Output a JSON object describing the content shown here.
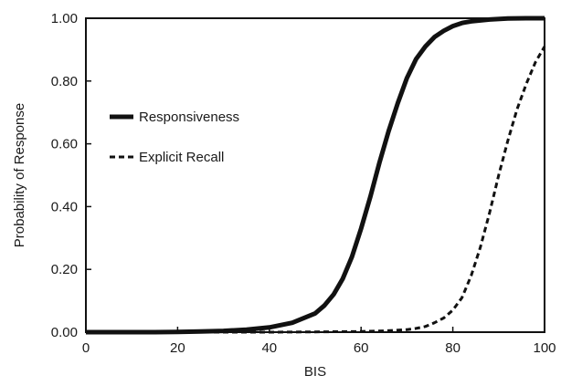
{
  "chart_data": {
    "type": "line",
    "title": "",
    "xlabel": "BIS",
    "ylabel": "Probability of Response",
    "xlim": [
      0,
      100
    ],
    "ylim": [
      0,
      1
    ],
    "x_ticks": [
      0,
      20,
      40,
      60,
      80,
      100
    ],
    "x_tick_labels": [
      "0",
      "20",
      "40",
      "60",
      "80",
      "100"
    ],
    "y_ticks": [
      0,
      0.2,
      0.4,
      0.6,
      0.8,
      1.0
    ],
    "y_tick_labels": [
      "0.00",
      "0.20",
      "0.40",
      "0.60",
      "0.80",
      "1.00"
    ],
    "grid": false,
    "legend_position": "left",
    "series": [
      {
        "name": "Responsiveness",
        "style": "solid",
        "color": "#111111",
        "points": [
          [
            0,
            0.0
          ],
          [
            5,
            0.0
          ],
          [
            10,
            0.0
          ],
          [
            15,
            0.0
          ],
          [
            20,
            0.001
          ],
          [
            25,
            0.002
          ],
          [
            30,
            0.004
          ],
          [
            35,
            0.008
          ],
          [
            40,
            0.015
          ],
          [
            45,
            0.03
          ],
          [
            50,
            0.06
          ],
          [
            52,
            0.085
          ],
          [
            54,
            0.12
          ],
          [
            56,
            0.17
          ],
          [
            58,
            0.24
          ],
          [
            60,
            0.33
          ],
          [
            62,
            0.43
          ],
          [
            64,
            0.54
          ],
          [
            66,
            0.64
          ],
          [
            68,
            0.73
          ],
          [
            70,
            0.81
          ],
          [
            72,
            0.87
          ],
          [
            74,
            0.91
          ],
          [
            76,
            0.94
          ],
          [
            78,
            0.96
          ],
          [
            80,
            0.975
          ],
          [
            82,
            0.985
          ],
          [
            84,
            0.99
          ],
          [
            88,
            0.996
          ],
          [
            92,
            0.999
          ],
          [
            96,
            1.0
          ],
          [
            100,
            1.0
          ]
        ]
      },
      {
        "name": "Explicit Recall",
        "style": "dashed",
        "color": "#111111",
        "points": [
          [
            0,
            0.0
          ],
          [
            10,
            0.0
          ],
          [
            20,
            0.0
          ],
          [
            30,
            0.0
          ],
          [
            40,
            0.0
          ],
          [
            50,
            0.001
          ],
          [
            60,
            0.002
          ],
          [
            65,
            0.004
          ],
          [
            70,
            0.008
          ],
          [
            72,
            0.012
          ],
          [
            74,
            0.018
          ],
          [
            76,
            0.03
          ],
          [
            78,
            0.045
          ],
          [
            80,
            0.07
          ],
          [
            82,
            0.11
          ],
          [
            84,
            0.18
          ],
          [
            86,
            0.27
          ],
          [
            88,
            0.38
          ],
          [
            90,
            0.5
          ],
          [
            92,
            0.61
          ],
          [
            94,
            0.71
          ],
          [
            96,
            0.79
          ],
          [
            98,
            0.86
          ],
          [
            100,
            0.91
          ]
        ]
      }
    ]
  }
}
